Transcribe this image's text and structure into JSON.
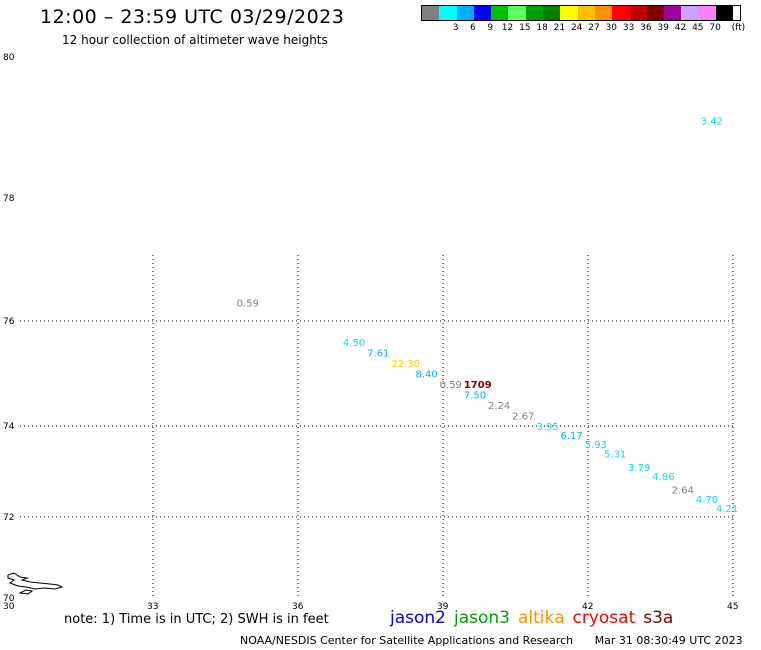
{
  "header": {
    "title": "12:00 – 23:59 UTC 03/29/2023",
    "subtitle": "12 hour collection of altimeter wave heights"
  },
  "legend": {
    "unit": "(ft)",
    "swatches": [
      {
        "color": "#808080",
        "label": ""
      },
      {
        "color": "#00ffff",
        "label": "3"
      },
      {
        "color": "#00b0ff",
        "label": "6"
      },
      {
        "color": "#0000ff",
        "label": "9"
      },
      {
        "color": "#00c000",
        "label": "12"
      },
      {
        "color": "#60ff60",
        "label": "15"
      },
      {
        "color": "#00a000",
        "label": "18"
      },
      {
        "color": "#008000",
        "label": "21"
      },
      {
        "color": "#ffff00",
        "label": "24"
      },
      {
        "color": "#ffc000",
        "label": "27"
      },
      {
        "color": "#ff9000",
        "label": "30"
      },
      {
        "color": "#ff0000",
        "label": "33"
      },
      {
        "color": "#c00000",
        "label": "36"
      },
      {
        "color": "#800000",
        "label": "39"
      },
      {
        "color": "#a000a0",
        "label": "42"
      },
      {
        "color": "#d0a0ff",
        "label": "45"
      },
      {
        "color": "#ff80ff",
        "label": "70"
      },
      {
        "color": "#000000",
        "label": ""
      }
    ]
  },
  "map": {
    "lon_range": [
      30,
      45
    ],
    "lat_range": [
      70,
      80
    ],
    "x_ticks": [
      "30",
      "33",
      "36",
      "39",
      "42",
      "45"
    ],
    "y_ticks": [
      "70",
      "72",
      "74",
      "76",
      "78",
      "80"
    ],
    "gridline_lons": [
      33,
      36,
      39,
      42,
      45
    ],
    "gridline_lats": [
      72,
      74,
      76
    ],
    "observations": [
      {
        "lon": 44.6,
        "lat": 79.1,
        "value": "3.42",
        "color": "#00e0ff"
      },
      {
        "lon": 35.0,
        "lat": 76.3,
        "value": "0.59",
        "color": "#808080"
      },
      {
        "lon": 37.2,
        "lat": 75.6,
        "value": "4.50",
        "color": "#00e0ff"
      },
      {
        "lon": 37.7,
        "lat": 75.4,
        "value": "7.61",
        "color": "#00b0ff"
      },
      {
        "lon": 38.2,
        "lat": 75.2,
        "value": "22.30",
        "color": "#ffd000"
      },
      {
        "lon": 38.7,
        "lat": 75.0,
        "value": "8.40",
        "color": "#00b0ff"
      },
      {
        "lon": 39.2,
        "lat": 74.8,
        "value": "0.59",
        "color": "#808080"
      },
      {
        "lon": 39.7,
        "lat": 74.8,
        "value": "1709",
        "color": "#800000",
        "bold": true
      },
      {
        "lon": 39.7,
        "lat": 74.6,
        "value": "7.50",
        "color": "#00b0ff"
      },
      {
        "lon": 40.2,
        "lat": 74.4,
        "value": "2.24",
        "color": "#808080"
      },
      {
        "lon": 40.7,
        "lat": 74.2,
        "value": "2.67",
        "color": "#808080"
      },
      {
        "lon": 41.2,
        "lat": 74.0,
        "value": "3.95",
        "color": "#00e0ff"
      },
      {
        "lon": 41.7,
        "lat": 73.8,
        "value": "6.17",
        "color": "#00b0ff"
      },
      {
        "lon": 42.2,
        "lat": 73.6,
        "value": "5.93",
        "color": "#00e0ff"
      },
      {
        "lon": 42.6,
        "lat": 73.4,
        "value": "5.31",
        "color": "#00e0ff"
      },
      {
        "lon": 43.1,
        "lat": 73.1,
        "value": "3.79",
        "color": "#00e0ff"
      },
      {
        "lon": 43.6,
        "lat": 72.9,
        "value": "4.86",
        "color": "#00e0ff"
      },
      {
        "lon": 44.0,
        "lat": 72.6,
        "value": "2.64",
        "color": "#808080"
      },
      {
        "lon": 44.5,
        "lat": 72.4,
        "value": "4.70",
        "color": "#00e0ff"
      },
      {
        "lon": 45.0,
        "lat": 72.2,
        "value": "4.21",
        "color": "#00e0ff"
      }
    ]
  },
  "footer": {
    "note": "note: 1) Time is in UTC; 2) SWH is in feet",
    "satellites": [
      {
        "name": "jason2",
        "color": "#0000ff"
      },
      {
        "name": "jason3",
        "color": "#00a000"
      },
      {
        "name": "altika",
        "color": "#ff9000"
      },
      {
        "name": "cryosat",
        "color": "#ff0000"
      },
      {
        "name": "s3a",
        "color": "#800000"
      }
    ],
    "credit": "NOAA/NESDIS Center for Satellite Applications and Research",
    "timestamp": "Mar 31 08:30:49 UTC 2023"
  }
}
